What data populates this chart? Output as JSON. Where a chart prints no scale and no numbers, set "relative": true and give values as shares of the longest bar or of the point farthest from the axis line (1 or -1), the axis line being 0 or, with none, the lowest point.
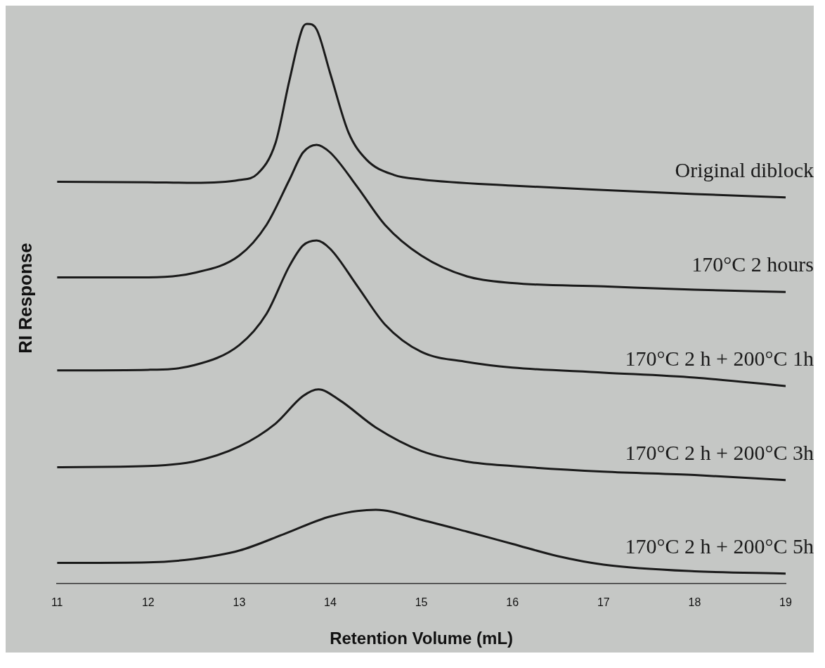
{
  "chart_data": {
    "type": "line",
    "relative": true,
    "xlabel": "Retention Volume (mL)",
    "ylabel": "RI Response",
    "xlim": [
      11,
      19
    ],
    "xticks": [
      11,
      12,
      13,
      14,
      15,
      16,
      17,
      18,
      19
    ],
    "tick_labels": "x",
    "grid": false,
    "legend": false,
    "marker": "none",
    "line_style": "solid",
    "series": [
      {
        "name": "Original diblock",
        "color": "#1a1a1a",
        "x": [
          11,
          12,
          12.5,
          13,
          13.2,
          13.4,
          13.55,
          13.7,
          13.75,
          13.85,
          14.0,
          14.2,
          14.4,
          14.7,
          15,
          16,
          17,
          18,
          19
        ],
        "values": [
          0.718,
          0.717,
          0.716,
          0.721,
          0.732,
          0.788,
          0.898,
          0.994,
          1,
          0.99,
          0.911,
          0.806,
          0.757,
          0.73,
          0.722,
          0.711,
          0.703,
          0.696,
          0.69
        ]
      },
      {
        "name": "170°C 2 hours",
        "color": "#1a1a1a",
        "x": [
          11,
          12,
          12.5,
          13,
          13.3,
          13.55,
          13.7,
          13.85,
          14.0,
          14.3,
          14.6,
          15,
          15.5,
          16,
          17,
          18,
          19
        ],
        "values": [
          0.547,
          0.547,
          0.555,
          0.586,
          0.641,
          0.721,
          0.77,
          0.784,
          0.77,
          0.708,
          0.641,
          0.586,
          0.549,
          0.537,
          0.531,
          0.525,
          0.521
        ]
      },
      {
        "name": "170°C 2 h + 200°C 1h",
        "color": "#1a1a1a",
        "x": [
          11,
          12,
          12.5,
          13,
          13.3,
          13.55,
          13.7,
          13.85,
          14.0,
          14.3,
          14.6,
          15,
          15.5,
          16,
          17,
          18,
          19
        ],
        "values": [
          0.381,
          0.382,
          0.39,
          0.426,
          0.482,
          0.567,
          0.604,
          0.613,
          0.598,
          0.531,
          0.463,
          0.414,
          0.396,
          0.386,
          0.377,
          0.368,
          0.353
        ]
      },
      {
        "name": "170°C 2 h + 200°C 3h",
        "color": "#1a1a1a",
        "x": [
          11,
          12,
          12.5,
          13,
          13.4,
          13.7,
          13.87,
          14.1,
          14.5,
          15,
          15.5,
          16,
          17,
          18,
          19
        ],
        "values": [
          0.208,
          0.21,
          0.218,
          0.245,
          0.286,
          0.335,
          0.347,
          0.328,
          0.279,
          0.237,
          0.218,
          0.21,
          0.2,
          0.194,
          0.185
        ]
      },
      {
        "name": "170°C 2 h + 200°C 5h",
        "color": "#1a1a1a",
        "x": [
          11,
          12,
          12.5,
          13,
          13.5,
          14,
          14.5,
          15,
          15.5,
          16,
          16.5,
          17,
          18,
          19
        ],
        "values": [
          0.037,
          0.038,
          0.044,
          0.059,
          0.089,
          0.12,
          0.132,
          0.114,
          0.093,
          0.071,
          0.049,
          0.034,
          0.022,
          0.018
        ]
      }
    ]
  }
}
